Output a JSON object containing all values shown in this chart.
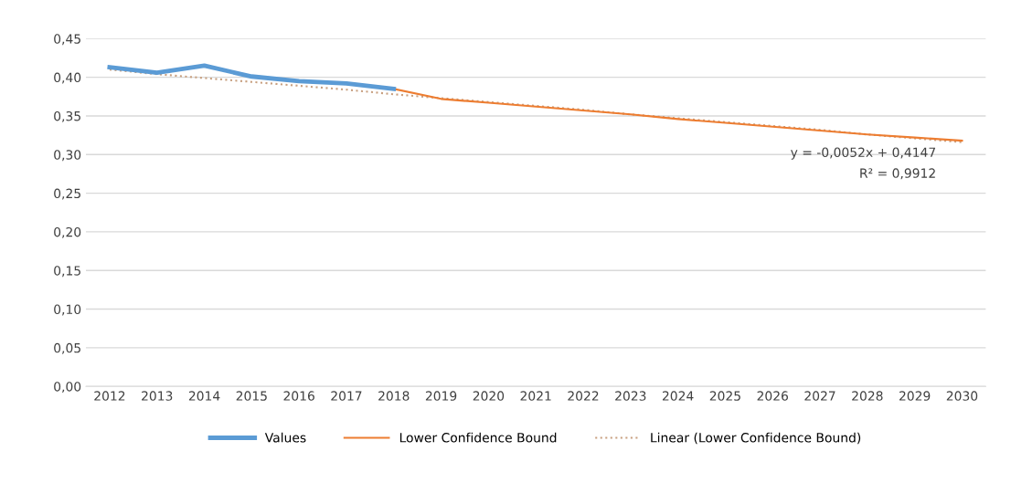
{
  "chart_data": {
    "type": "line",
    "categories": [
      "2012",
      "2013",
      "2014",
      "2015",
      "2016",
      "2017",
      "2018",
      "2019",
      "2020",
      "2021",
      "2022",
      "2023",
      "2024",
      "2025",
      "2026",
      "2027",
      "2028",
      "2029",
      "2030"
    ],
    "ylim": [
      0,
      0.45
    ],
    "yticks": [
      {
        "value": 0,
        "label": "0,00"
      },
      {
        "value": 0.05,
        "label": "0,05"
      },
      {
        "value": 0.1,
        "label": "0,10"
      },
      {
        "value": 0.15,
        "label": "0,15"
      },
      {
        "value": 0.2,
        "label": "0,20"
      },
      {
        "value": 0.25,
        "label": "0,25"
      },
      {
        "value": 0.3,
        "label": "0,30"
      },
      {
        "value": 0.35,
        "label": "0,35"
      },
      {
        "value": 0.4,
        "label": "0,40"
      },
      {
        "value": 0.45,
        "label": "0,45"
      }
    ],
    "grid": "y",
    "legend": "bottom",
    "series": [
      {
        "name": "Values",
        "color": "#5b9bd5",
        "line_style": "solid",
        "values": [
          0.413,
          0.406,
          0.415,
          0.401,
          0.395,
          0.392,
          0.385,
          null,
          null,
          null,
          null,
          null,
          null,
          null,
          null,
          null,
          null,
          null,
          null
        ]
      },
      {
        "name": "Lower Confidence Bound",
        "color": "#ed7d31",
        "line_style": "solid",
        "values": [
          null,
          null,
          null,
          null,
          null,
          null,
          0.385,
          0.372,
          0.367,
          0.362,
          0.357,
          0.352,
          0.346,
          0.341,
          0.336,
          0.331,
          0.326,
          0.322,
          0.318
        ]
      },
      {
        "name": "Linear (Lower Confidence Bound)",
        "type": "line",
        "color": "#c8a080",
        "line_style": "dotted",
        "values": [
          0.41,
          0.404,
          0.399,
          0.394,
          0.389,
          0.384,
          0.378,
          0.373,
          0.368,
          0.363,
          0.358,
          0.352,
          0.347,
          0.342,
          0.337,
          0.332,
          0.326,
          0.321,
          0.316
        ]
      }
    ],
    "annotations": [
      "y = -0,0052x + 0,4147",
      "R² = 0,9912"
    ]
  }
}
